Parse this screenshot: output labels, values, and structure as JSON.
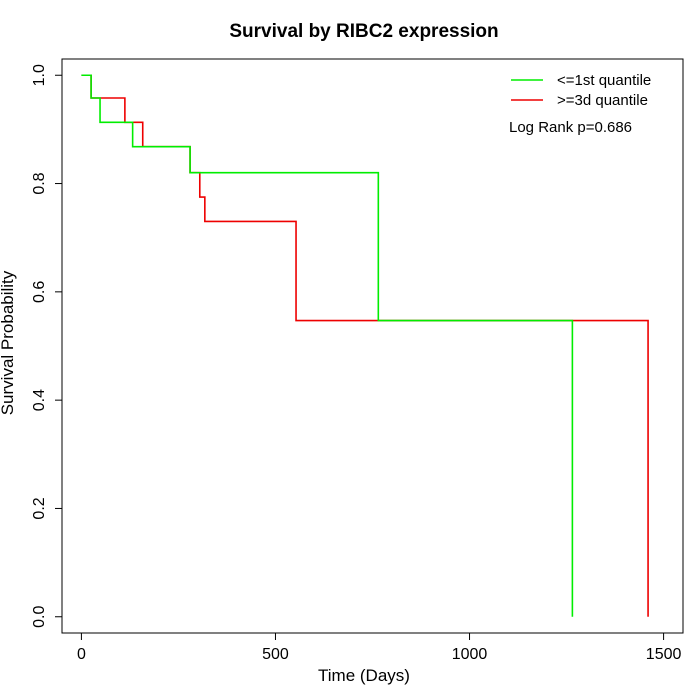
{
  "chart_data": {
    "type": "line",
    "title": "Survival by RIBC2 expression",
    "xlabel": "Time (Days)",
    "ylabel": "Survival Probability",
    "xlim": [
      -50,
      1550
    ],
    "ylim": [
      -0.03,
      1.03
    ],
    "x_ticks": [
      0,
      500,
      1000,
      1500
    ],
    "y_ticks": [
      0.0,
      0.2,
      0.4,
      0.6,
      0.8,
      1.0
    ],
    "x_tick_labels": [
      "0",
      "500",
      "1000",
      "1500"
    ],
    "y_tick_labels": [
      "0.0",
      "0.2",
      "0.4",
      "0.6",
      "0.8",
      "1.0"
    ],
    "grid": false,
    "legend_position": "top-right",
    "annotation": "Log Rank p=0.686",
    "series": [
      {
        "name": "<=1st quantile",
        "color": "#00ee00",
        "step_x": [
          0,
          25,
          48,
          132,
          280,
          765,
          1265
        ],
        "step_y": [
          1.0,
          0.958,
          0.913,
          0.868,
          0.82,
          0.547,
          0.0
        ]
      },
      {
        "name": ">=3d quantile",
        "color": "#ee0000",
        "step_x": [
          0,
          25,
          112,
          158,
          280,
          305,
          318,
          553,
          1460
        ],
        "step_y": [
          1.0,
          0.958,
          0.913,
          0.868,
          0.82,
          0.775,
          0.73,
          0.547,
          0.0
        ]
      }
    ]
  }
}
